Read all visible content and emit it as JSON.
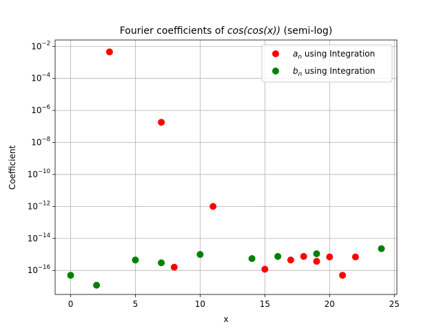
{
  "chart_data": {
    "type": "scatter",
    "title_prefix": "Fourier coefficients of ",
    "title_math": "cos(cos(x))",
    "title_suffix": " (semi-log)",
    "xlabel": "x",
    "ylabel": "Coefficient",
    "xlim": [
      -1.2,
      25.2
    ],
    "ylim_log10": [
      -17.5,
      -1.6
    ],
    "yscale": "log",
    "grid": true,
    "legend_placement": "top-right",
    "x_ticks": [
      0,
      5,
      10,
      15,
      20,
      25
    ],
    "x_tick_labels": [
      "0",
      "5",
      "10",
      "15",
      "20",
      "25"
    ],
    "y_tick_exponents": [
      -2,
      -4,
      -6,
      -8,
      -10,
      -12,
      -14,
      -16
    ],
    "y_tick_base": "10",
    "y_tick_labels": [
      "−2",
      "−4",
      "−6",
      "−8",
      "−10",
      "−12",
      "−14",
      "−16"
    ],
    "series": [
      {
        "name": "a_n using Integration",
        "legend_symbol": "a",
        "legend_subscript": "n",
        "legend_text": " using Integration",
        "color": "#ff0000",
        "points": [
          {
            "x": 3,
            "y": 0.0045
          },
          {
            "x": 7,
            "y": 1.8e-07
          },
          {
            "x": 8,
            "y": 1.6e-16
          },
          {
            "x": 11,
            "y": 1e-12
          },
          {
            "x": 15,
            "y": 1.2e-16
          },
          {
            "x": 17,
            "y": 4.5e-16
          },
          {
            "x": 18,
            "y": 7.5e-16
          },
          {
            "x": 19,
            "y": 3.7e-16
          },
          {
            "x": 20,
            "y": 7e-16
          },
          {
            "x": 21,
            "y": 5e-17
          },
          {
            "x": 22,
            "y": 7e-16
          }
        ]
      },
      {
        "name": "b_n using Integration",
        "legend_symbol": "b",
        "legend_subscript": "n",
        "legend_text": " using Integration",
        "color": "#008000",
        "points": [
          {
            "x": 0,
            "y": 5e-17
          },
          {
            "x": 2,
            "y": 1.2e-17
          },
          {
            "x": 5,
            "y": 4.5e-16
          },
          {
            "x": 7,
            "y": 3e-16
          },
          {
            "x": 10,
            "y": 1e-15
          },
          {
            "x": 14,
            "y": 5.5e-16
          },
          {
            "x": 16,
            "y": 7.5e-16
          },
          {
            "x": 19,
            "y": 1.1e-15
          },
          {
            "x": 24,
            "y": 2.3e-15
          }
        ]
      }
    ]
  }
}
